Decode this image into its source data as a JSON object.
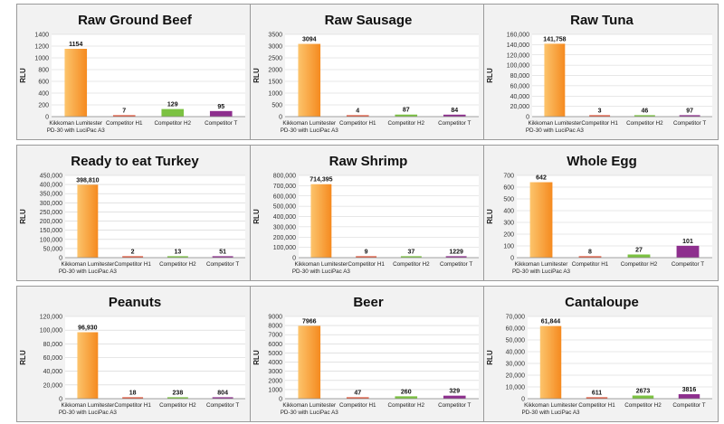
{
  "chart_data": [
    {
      "type": "bar",
      "title": "Raw Ground Beef",
      "ylabel": "RLU",
      "ylim": [
        0,
        1400
      ],
      "yticks": [
        "0",
        "200",
        "400",
        "600",
        "800",
        "1000",
        "1200",
        "1400"
      ],
      "categories": [
        [
          "Kikkoman Lumitester",
          "PD-30 with LuciPac A3"
        ],
        [
          "Competitor H1"
        ],
        [
          "Competitor H2"
        ],
        [
          "Competitor T"
        ]
      ],
      "values": [
        1154,
        7,
        129,
        95
      ],
      "labels": [
        "1154",
        "7",
        "129",
        "95"
      ]
    },
    {
      "type": "bar",
      "title": "Raw Sausage",
      "ylabel": "RLU",
      "ylim": [
        0,
        3500
      ],
      "yticks": [
        "0",
        "500",
        "1000",
        "1500",
        "2000",
        "2500",
        "3000",
        "3500"
      ],
      "categories": [
        [
          "Kikkoman Lumitester",
          "PD-30 with LuciPac A3"
        ],
        [
          "Competitor H1"
        ],
        [
          "Competitor H2"
        ],
        [
          "Competitor T"
        ]
      ],
      "values": [
        3094,
        4,
        87,
        84
      ],
      "labels": [
        "3094",
        "4",
        "87",
        "84"
      ]
    },
    {
      "type": "bar",
      "title": "Raw Tuna",
      "ylabel": "RLU",
      "ylim": [
        0,
        160000
      ],
      "yticks": [
        "0",
        "20,000",
        "40,000",
        "60,000",
        "80,000",
        "100,000",
        "120,000",
        "140,000",
        "160,000"
      ],
      "categories": [
        [
          "Kikkoman Lumitester",
          "PD-30 with LuciPac A3"
        ],
        [
          "Competitor H1"
        ],
        [
          "Competitor H2"
        ],
        [
          "Competitor T"
        ]
      ],
      "values": [
        141758,
        3,
        46,
        97
      ],
      "labels": [
        "141,758",
        "3",
        "46",
        "97"
      ]
    },
    {
      "type": "bar",
      "title": "Ready to eat Turkey",
      "ylabel": "RLU",
      "ylim": [
        0,
        450000
      ],
      "yticks": [
        "0",
        "50,000",
        "100,000",
        "150,000",
        "200,000",
        "250,000",
        "300,000",
        "350,000",
        "400,000",
        "450,000"
      ],
      "categories": [
        [
          "Kikkoman Lumitester",
          "PD-30 with LuciPac A3"
        ],
        [
          "Competitor H1"
        ],
        [
          "Competitor H2"
        ],
        [
          "Competitor T"
        ]
      ],
      "values": [
        398810,
        2,
        13,
        51
      ],
      "labels": [
        "398,810",
        "2",
        "13",
        "51"
      ]
    },
    {
      "type": "bar",
      "title": "Raw Shrimp",
      "ylabel": "RLU",
      "ylim": [
        0,
        800000
      ],
      "yticks": [
        "0",
        "100,000",
        "200,000",
        "300,000",
        "400,000",
        "500,000",
        "600,000",
        "700,000",
        "800,000"
      ],
      "categories": [
        [
          "Kikkoman Lumitester",
          "PD-30 with LuciPac A3"
        ],
        [
          "Competitor H1"
        ],
        [
          "Competitor H2"
        ],
        [
          "Competitor T"
        ]
      ],
      "values": [
        714395,
        9,
        37,
        1229
      ],
      "labels": [
        "714,395",
        "9",
        "37",
        "1229"
      ]
    },
    {
      "type": "bar",
      "title": "Whole Egg",
      "ylabel": "RLU",
      "ylim": [
        0,
        700
      ],
      "yticks": [
        "0",
        "100",
        "200",
        "300",
        "400",
        "500",
        "600",
        "700"
      ],
      "categories": [
        [
          "Kikkoman Lumitester",
          "PD-30 with LuciPac A3"
        ],
        [
          "Competitor H1"
        ],
        [
          "Competitor H2"
        ],
        [
          "Competitor T"
        ]
      ],
      "values": [
        642,
        8,
        27,
        101
      ],
      "labels": [
        "642",
        "8",
        "27",
        "101"
      ]
    },
    {
      "type": "bar",
      "title": "Peanuts",
      "ylabel": "RLU",
      "ylim": [
        0,
        120000
      ],
      "yticks": [
        "0",
        "20,000",
        "40,000",
        "60,000",
        "80,000",
        "100,000",
        "120,000"
      ],
      "categories": [
        [
          "Kikkoman Lumitester",
          "PD-30 with LuciPac A3"
        ],
        [
          "Competitor H1"
        ],
        [
          "Competitor H2"
        ],
        [
          "Competitor T"
        ]
      ],
      "values": [
        96930,
        18,
        238,
        804
      ],
      "labels": [
        "96,930",
        "18",
        "238",
        "804"
      ]
    },
    {
      "type": "bar",
      "title": "Beer",
      "ylabel": "RLU",
      "ylim": [
        0,
        9000
      ],
      "yticks": [
        "0",
        "1000",
        "2000",
        "3000",
        "4000",
        "5000",
        "6000",
        "7000",
        "8000",
        "9000"
      ],
      "categories": [
        [
          "Kikkoman Lumitester",
          "PD-30 with LuciPac A3"
        ],
        [
          "Competitor H1"
        ],
        [
          "Competitor H2"
        ],
        [
          "Competitor T"
        ]
      ],
      "values": [
        7966,
        47,
        260,
        329
      ],
      "labels": [
        "7966",
        "47",
        "260",
        "329"
      ]
    },
    {
      "type": "bar",
      "title": "Cantaloupe",
      "ylabel": "RLU",
      "ylim": [
        0,
        70000
      ],
      "yticks": [
        "0",
        "10,000",
        "20,000",
        "30,000",
        "40,000",
        "50,000",
        "60,000",
        "70,000"
      ],
      "categories": [
        [
          "Kikkoman Lumitester",
          "PD-30 with LuciPac A3"
        ],
        [
          "Competitor H1"
        ],
        [
          "Competitor H2"
        ],
        [
          "Competitor T"
        ]
      ],
      "values": [
        61844,
        611,
        2673,
        3816
      ],
      "labels": [
        "61,844",
        "611",
        "2673",
        "3816"
      ]
    }
  ],
  "colors": {
    "bar_fills": [
      "url(#grad-orange)",
      "#e0533a",
      "#7cc242",
      "#8e2f8e"
    ],
    "orange_light": "#fcc46c",
    "orange_dark": "#f58a1f",
    "grid": "#d0d0d0",
    "axis": "#8a8a8a",
    "panel_bg": "#f2f2f2",
    "plot_bg": "#ffffff"
  }
}
